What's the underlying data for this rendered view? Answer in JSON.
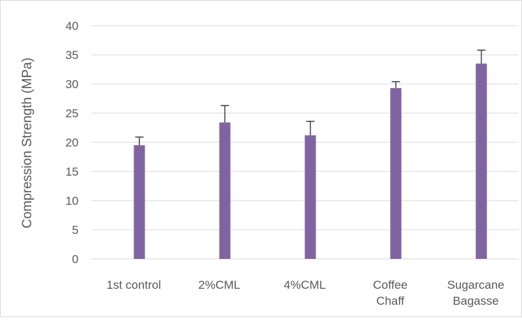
{
  "chart_data": {
    "type": "bar",
    "title": "",
    "xlabel": "",
    "ylabel": "Compression Strength (MPa)",
    "ylim": [
      0,
      40
    ],
    "yticks": [
      0,
      5,
      10,
      15,
      20,
      25,
      30,
      35,
      40
    ],
    "grid": true,
    "legend": "none",
    "categories": [
      [
        "1st control"
      ],
      [
        "2%CML"
      ],
      [
        "4%CML"
      ],
      [
        "Coffee",
        "Chaff"
      ],
      [
        "Sugarcane",
        "Bagasse"
      ]
    ],
    "series": [
      {
        "values": [
          0,
          0,
          0,
          0,
          0
        ],
        "color": "#5b9bd5"
      },
      {
        "values": [
          19.5,
          23.4,
          21.2,
          29.3,
          33.5
        ],
        "error_plus": [
          1.4,
          2.9,
          2.4,
          1.1,
          2.3
        ],
        "color": "#8064a2"
      }
    ],
    "colors": {
      "grid": "#d9d9d9",
      "text": "#595959",
      "errorbar": "#404040"
    }
  }
}
